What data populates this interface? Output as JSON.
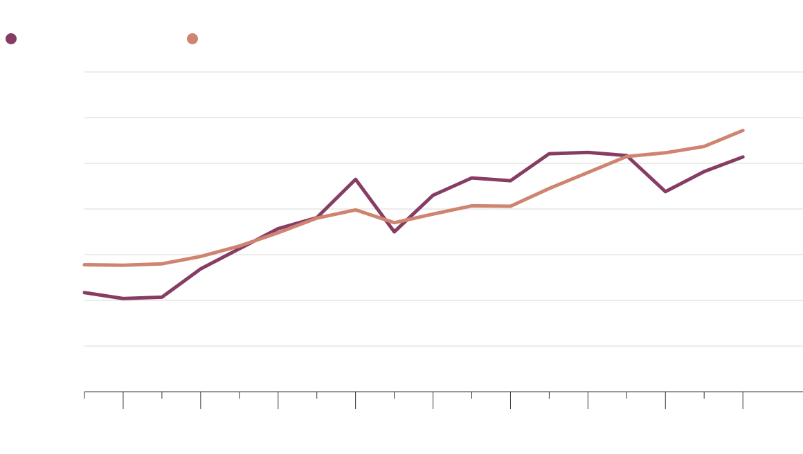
{
  "chart_data": {
    "type": "line",
    "title": "",
    "xlabel": "",
    "ylabel": "",
    "x": [
      1,
      2,
      3,
      4,
      5,
      6,
      7,
      8,
      9,
      10,
      11,
      12,
      13,
      14,
      15,
      16,
      17,
      18
    ],
    "ylim": [
      0,
      7
    ],
    "yticks": [
      0,
      1,
      2,
      3,
      4,
      5,
      6,
      7
    ],
    "grid": true,
    "legend": "top-left",
    "series": [
      {
        "name": "",
        "color": "#873d63",
        "values": [
          2.17,
          2.04,
          2.07,
          2.69,
          3.13,
          3.57,
          3.81,
          4.65,
          3.5,
          4.3,
          4.68,
          4.62,
          5.21,
          5.24,
          5.17,
          4.38,
          4.82,
          5.14
        ]
      },
      {
        "name": "",
        "color": "#cf8470",
        "values": [
          2.78,
          2.77,
          2.8,
          2.96,
          3.19,
          3.48,
          3.8,
          3.98,
          3.7,
          3.89,
          4.07,
          4.06,
          4.45,
          4.8,
          5.15,
          5.23,
          5.37,
          5.72
        ]
      }
    ]
  }
}
